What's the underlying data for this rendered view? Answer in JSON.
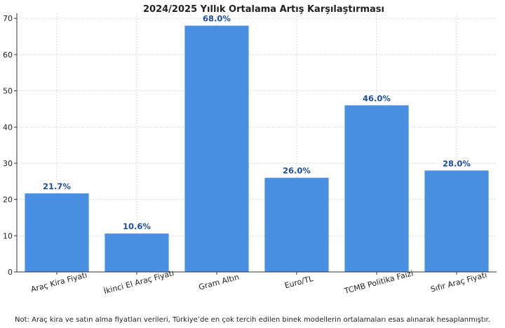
{
  "chart_data": {
    "type": "bar",
    "title": "2024/2025 Yıllık Ortalama Artış Karşılaştırması",
    "xlabel": "",
    "ylabel": "",
    "categories": [
      "Araç Kira Fiyatı",
      "İkinci El Araç Fiyatı",
      "Gram Altın",
      "Euro/TL",
      "TCMB Politika Faizi",
      "Sıfır Araç Fiyatı"
    ],
    "values": [
      21.7,
      10.6,
      68.0,
      26.0,
      46.0,
      28.0
    ],
    "data_labels": [
      "21.7%",
      "10.6%",
      "68.0%",
      "26.0%",
      "46.0%",
      "28.0%"
    ],
    "ylim": [
      0,
      71.4
    ],
    "yticks": [
      "0",
      "10",
      "20",
      "30",
      "40",
      "50",
      "60",
      "70"
    ],
    "grid": true,
    "bar_color": "#4a90e2",
    "label_color": "#1f4e9c"
  },
  "note": "Not: Araç kira ve satın alma fiyatları verileri, Türkiye’de en çok tercih edilen binek modellerin ortalamaları esas alınarak hesaplanmıştır."
}
